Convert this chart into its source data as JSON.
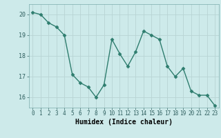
{
  "x": [
    0,
    1,
    2,
    3,
    4,
    5,
    6,
    7,
    8,
    9,
    10,
    11,
    12,
    13,
    14,
    15,
    16,
    17,
    18,
    19,
    20,
    21,
    22,
    23
  ],
  "y": [
    20.1,
    20.0,
    19.6,
    19.4,
    19.0,
    17.1,
    16.7,
    16.5,
    16.0,
    16.6,
    18.8,
    18.1,
    17.5,
    18.2,
    19.2,
    19.0,
    18.8,
    17.5,
    17.0,
    17.4,
    16.3,
    16.1,
    16.1,
    15.6
  ],
  "xlabel": "Humidex (Indice chaleur)",
  "ylim": [
    15.5,
    20.5
  ],
  "xlim": [
    -0.5,
    23.5
  ],
  "line_color": "#2e7d6e",
  "marker": "D",
  "marker_size": 2.5,
  "bg_color": "#cdeaea",
  "grid_color": "#b8d4d4",
  "yticks": [
    16,
    17,
    18,
    19,
    20
  ],
  "xticks": [
    0,
    1,
    2,
    3,
    4,
    5,
    6,
    7,
    8,
    9,
    10,
    11,
    12,
    13,
    14,
    15,
    16,
    17,
    18,
    19,
    20,
    21,
    22,
    23
  ],
  "tick_fontsize": 5.5,
  "xlabel_fontsize": 7,
  "linewidth": 1.0
}
